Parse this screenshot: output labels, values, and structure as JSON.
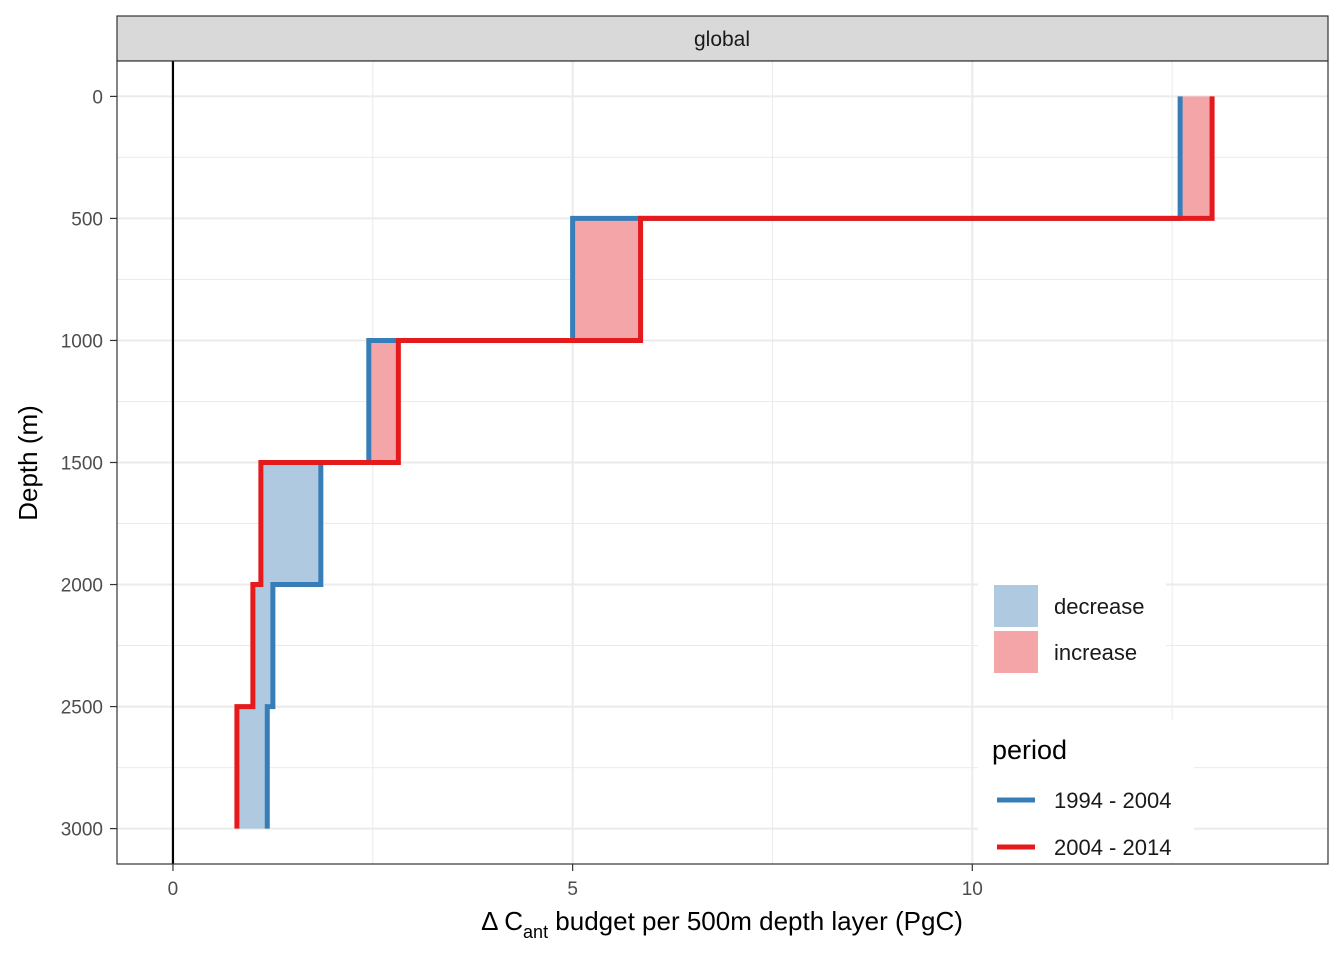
{
  "chart_data": {
    "type": "line",
    "facet_label": "global",
    "xlabel": {
      "prefix": "Δ C",
      "subscript": "ant",
      "suffix": " budget per 500m depth layer (PgC)"
    },
    "ylabel": "Depth (m)",
    "xlim": [
      -0.7,
      14.45
    ],
    "ylim": [
      3145,
      -145
    ],
    "x_ticks": [
      0,
      5,
      10
    ],
    "y_ticks": [
      0,
      500,
      1000,
      1500,
      2000,
      2500,
      3000
    ],
    "x_tick_labels": [
      "0",
      "5",
      "10"
    ],
    "y_tick_labels": [
      "0",
      "500",
      "1000",
      "1500",
      "2000",
      "2500",
      "3000"
    ],
    "grid": true,
    "vline_x": 0,
    "layer_bounds": [
      0,
      500,
      1000,
      1500,
      2000,
      2500,
      3000
    ],
    "series": [
      {
        "name": "1994 - 2004",
        "color": "#377EB8",
        "values": [
          12.6,
          5.0,
          2.45,
          1.85,
          1.25,
          1.18
        ]
      },
      {
        "name": "2004 - 2014",
        "color": "#E41A1C",
        "values": [
          13.0,
          5.85,
          2.82,
          1.1,
          1.0,
          0.8
        ]
      }
    ],
    "fill_legend": [
      {
        "label": "decrease",
        "color": "#AFC9E0"
      },
      {
        "label": "increase",
        "color": "#F4A5A7"
      }
    ],
    "line_legend_title": "period",
    "legend_position": "bottom-right (inside)"
  }
}
